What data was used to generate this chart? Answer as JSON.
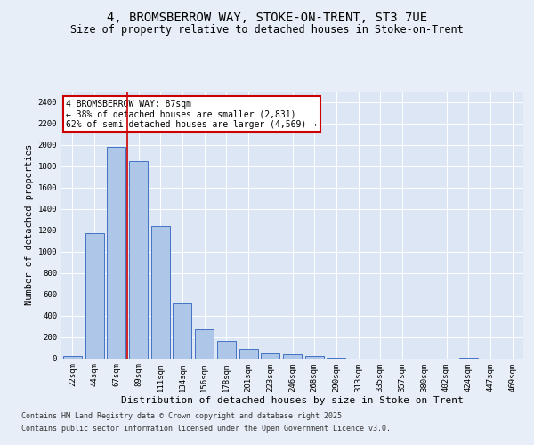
{
  "title_line1": "4, BROMSBERROW WAY, STOKE-ON-TRENT, ST3 7UE",
  "title_line2": "Size of property relative to detached houses in Stoke-on-Trent",
  "xlabel": "Distribution of detached houses by size in Stoke-on-Trent",
  "ylabel": "Number of detached properties",
  "categories": [
    "22sqm",
    "44sqm",
    "67sqm",
    "89sqm",
    "111sqm",
    "134sqm",
    "156sqm",
    "178sqm",
    "201sqm",
    "223sqm",
    "246sqm",
    "268sqm",
    "290sqm",
    "313sqm",
    "335sqm",
    "357sqm",
    "380sqm",
    "402sqm",
    "424sqm",
    "447sqm",
    "469sqm"
  ],
  "values": [
    25,
    1175,
    1980,
    1850,
    1240,
    515,
    275,
    160,
    90,
    48,
    38,
    18,
    8,
    0,
    0,
    0,
    0,
    0,
    5,
    0,
    0
  ],
  "bar_color": "#aec6e8",
  "bar_edge_color": "#4472c4",
  "background_color": "#e8eef7",
  "plot_bg_color": "#dce6f5",
  "grid_color": "#ffffff",
  "vline_color": "#cc0000",
  "annotation_text": "4 BROMSBERROW WAY: 87sqm\n← 38% of detached houses are smaller (2,831)\n62% of semi-detached houses are larger (4,569) →",
  "annotation_box_color": "#ffffff",
  "annotation_box_edge_color": "#cc0000",
  "ylim": [
    0,
    2500
  ],
  "yticks": [
    0,
    200,
    400,
    600,
    800,
    1000,
    1200,
    1400,
    1600,
    1800,
    2000,
    2200,
    2400
  ],
  "footer_line1": "Contains HM Land Registry data © Crown copyright and database right 2025.",
  "footer_line2": "Contains public sector information licensed under the Open Government Licence v3.0.",
  "title_fontsize": 10,
  "subtitle_fontsize": 8.5,
  "axis_label_fontsize": 7.5,
  "tick_fontsize": 6.5,
  "annotation_fontsize": 7,
  "footer_fontsize": 6
}
